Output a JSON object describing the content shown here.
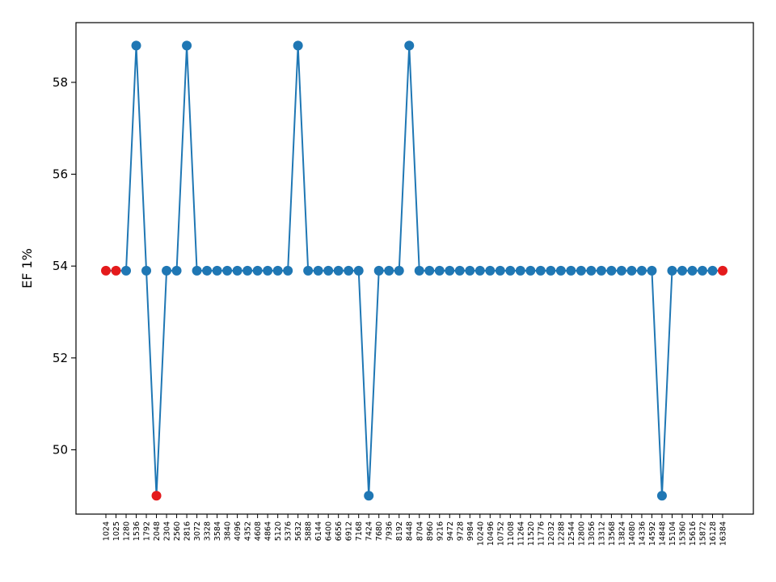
{
  "chart_data": {
    "type": "line",
    "title": "",
    "xlabel": "",
    "ylabel": "EF 1%",
    "ylim": [
      48.6,
      59.3
    ],
    "yticks": [
      50,
      52,
      54,
      56,
      58
    ],
    "grid": false,
    "legend": "none",
    "line_color": "#1f77b4",
    "highlight_color": "#e41a1c",
    "categories": [
      "1024",
      "1025",
      "1280",
      "1536",
      "1792",
      "2048",
      "2304",
      "2560",
      "2816",
      "3072",
      "3328",
      "3584",
      "3840",
      "4096",
      "4352",
      "4608",
      "4864",
      "5120",
      "5376",
      "5632",
      "5888",
      "6144",
      "6400",
      "6656",
      "6912",
      "7168",
      "7424",
      "7680",
      "7936",
      "8192",
      "8448",
      "8704",
      "8960",
      "9216",
      "9472",
      "9728",
      "9984",
      "10240",
      "10496",
      "10752",
      "11008",
      "11264",
      "11520",
      "11776",
      "12032",
      "12288",
      "12544",
      "12800",
      "13056",
      "13312",
      "13568",
      "13824",
      "14080",
      "14336",
      "14592",
      "14848",
      "15104",
      "15360",
      "15616",
      "15872",
      "16128",
      "16384"
    ],
    "values": [
      53.9,
      53.9,
      53.9,
      58.8,
      53.9,
      49.0,
      53.9,
      53.9,
      58.8,
      53.9,
      53.9,
      53.9,
      53.9,
      53.9,
      53.9,
      53.9,
      53.9,
      53.9,
      53.9,
      58.8,
      53.9,
      53.9,
      53.9,
      53.9,
      53.9,
      53.9,
      49.0,
      53.9,
      53.9,
      53.9,
      58.8,
      53.9,
      53.9,
      53.9,
      53.9,
      53.9,
      53.9,
      53.9,
      53.9,
      53.9,
      53.9,
      53.9,
      53.9,
      53.9,
      53.9,
      53.9,
      53.9,
      53.9,
      53.9,
      53.9,
      53.9,
      53.9,
      53.9,
      53.9,
      53.9,
      49.0,
      53.9,
      53.9,
      53.9,
      53.9,
      53.9,
      53.9
    ],
    "highlighted_points": [
      "1024",
      "1025",
      "2048",
      "16384"
    ]
  }
}
